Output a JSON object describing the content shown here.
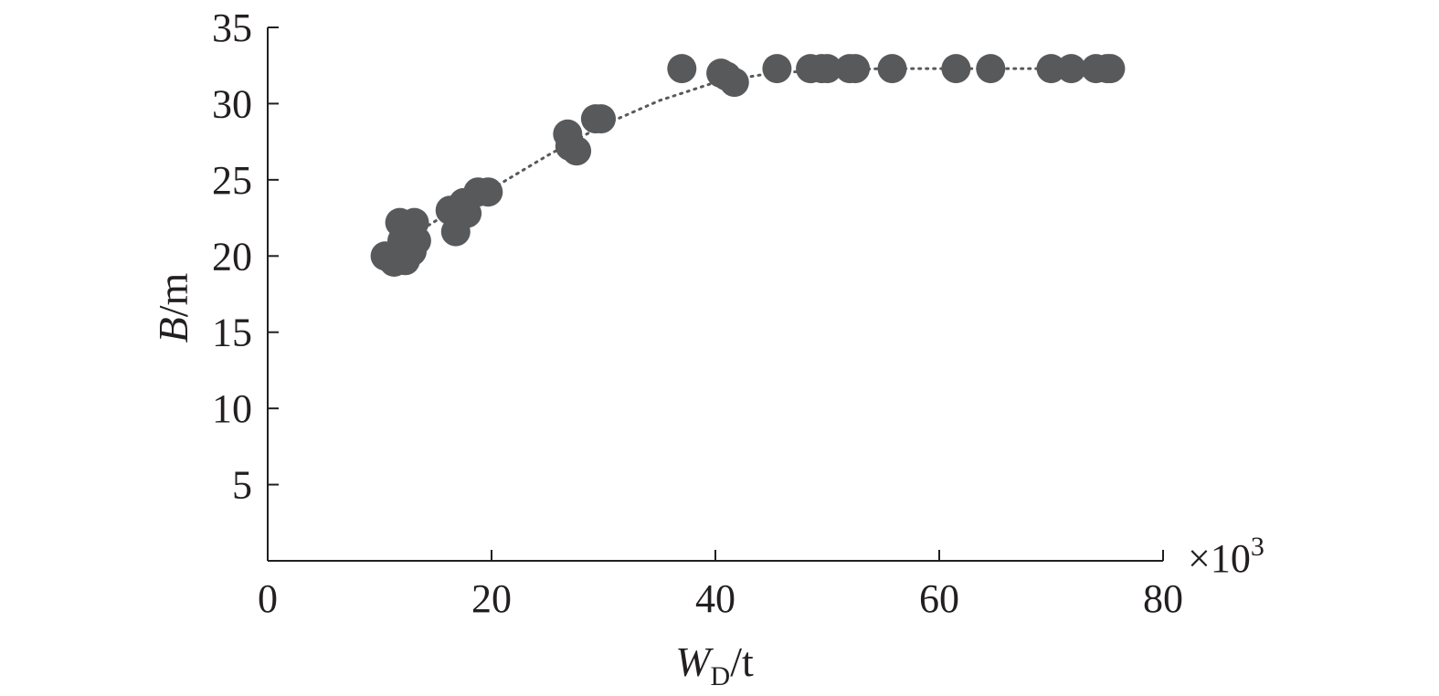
{
  "chart_data": {
    "type": "scatter",
    "title": "",
    "xlabel": {
      "var": "W",
      "sub": "D",
      "unit": "/t"
    },
    "ylabel": {
      "var": "B",
      "unit": "/m"
    },
    "x_multiplier": "×10",
    "x_multiplier_exp": "3",
    "xlim": [
      0,
      80
    ],
    "ylim": [
      0,
      35
    ],
    "xticks": [
      "0",
      "20",
      "40",
      "60",
      "80"
    ],
    "yticks": [
      "5",
      "10",
      "15",
      "20",
      "25",
      "30",
      "35"
    ],
    "grid": false,
    "legend": "none",
    "colors": {
      "points": "#58595b",
      "trend": "#58595b",
      "axis": "#231f20"
    },
    "points": [
      {
        "x": 10.5,
        "y": 20.0
      },
      {
        "x": 11.0,
        "y": 19.8
      },
      {
        "x": 11.3,
        "y": 19.6
      },
      {
        "x": 11.5,
        "y": 20.2
      },
      {
        "x": 11.8,
        "y": 22.2
      },
      {
        "x": 12.0,
        "y": 21.0
      },
      {
        "x": 12.2,
        "y": 20.5
      },
      {
        "x": 12.3,
        "y": 19.7
      },
      {
        "x": 12.5,
        "y": 22.0
      },
      {
        "x": 12.7,
        "y": 21.8
      },
      {
        "x": 12.9,
        "y": 20.3
      },
      {
        "x": 13.1,
        "y": 22.2
      },
      {
        "x": 13.3,
        "y": 21.0
      },
      {
        "x": 16.3,
        "y": 23.0
      },
      {
        "x": 16.8,
        "y": 21.6
      },
      {
        "x": 17.5,
        "y": 23.5
      },
      {
        "x": 17.8,
        "y": 22.8
      },
      {
        "x": 18.8,
        "y": 24.2
      },
      {
        "x": 19.7,
        "y": 24.2
      },
      {
        "x": 26.8,
        "y": 28.0
      },
      {
        "x": 27.0,
        "y": 27.2
      },
      {
        "x": 27.6,
        "y": 26.9
      },
      {
        "x": 29.3,
        "y": 29.0
      },
      {
        "x": 29.8,
        "y": 29.0
      },
      {
        "x": 37.0,
        "y": 32.3
      },
      {
        "x": 40.5,
        "y": 32.0
      },
      {
        "x": 41.0,
        "y": 31.8
      },
      {
        "x": 41.7,
        "y": 31.4
      },
      {
        "x": 45.5,
        "y": 32.3
      },
      {
        "x": 48.5,
        "y": 32.3
      },
      {
        "x": 49.5,
        "y": 32.3
      },
      {
        "x": 50.0,
        "y": 32.3
      },
      {
        "x": 52.0,
        "y": 32.3
      },
      {
        "x": 52.5,
        "y": 32.3
      },
      {
        "x": 55.8,
        "y": 32.3
      },
      {
        "x": 61.5,
        "y": 32.3
      },
      {
        "x": 64.6,
        "y": 32.3
      },
      {
        "x": 70.0,
        "y": 32.3
      },
      {
        "x": 71.8,
        "y": 32.3
      },
      {
        "x": 74.0,
        "y": 32.3
      },
      {
        "x": 75.0,
        "y": 32.3
      },
      {
        "x": 75.3,
        "y": 32.3
      }
    ],
    "trendline": {
      "style": "dotted",
      "x": [
        11,
        15,
        20,
        25,
        30,
        35,
        40,
        45,
        50,
        55,
        60,
        65,
        70,
        75
      ],
      "y": [
        20.5,
        22.3,
        24.4,
        26.6,
        28.6,
        30.2,
        31.4,
        32.0,
        32.2,
        32.3,
        32.3,
        32.3,
        32.3,
        32.3
      ]
    }
  }
}
